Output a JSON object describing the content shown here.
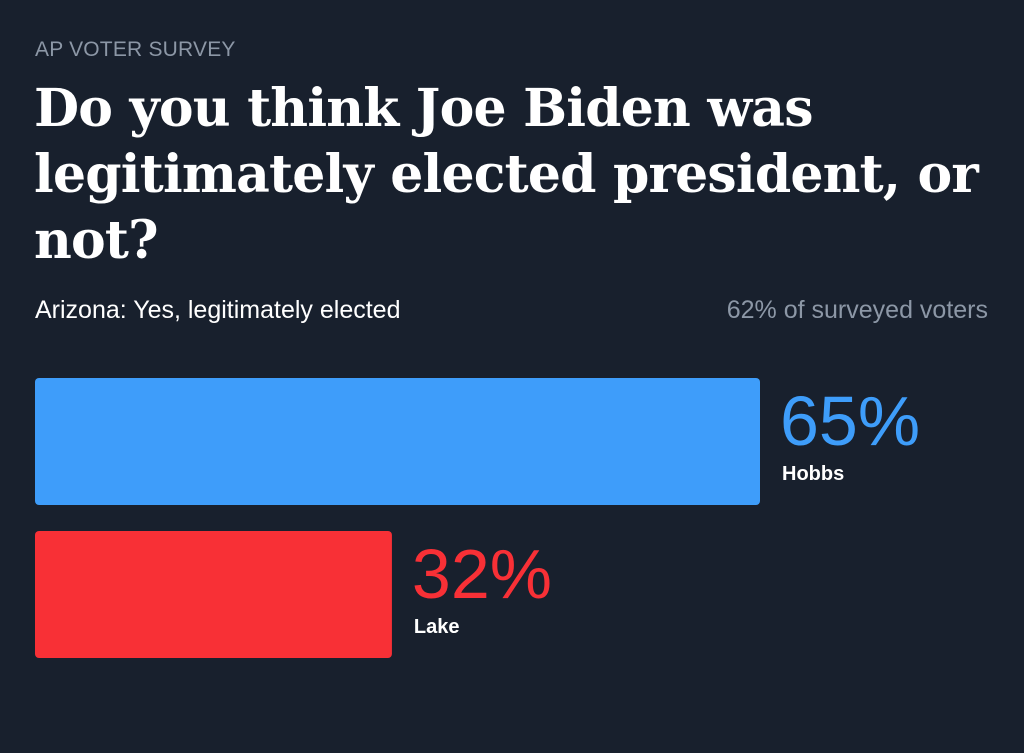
{
  "header": {
    "kicker": "AP VOTER SURVEY",
    "title": "Do you think Joe Biden was legitimately elected president, or not?",
    "subtitle": "Arizona: Yes, legitimately elected",
    "note": "62% of surveyed voters"
  },
  "chart_data": {
    "type": "bar",
    "orientation": "horizontal",
    "categories": [
      "Hobbs",
      "Lake"
    ],
    "values": [
      65,
      32
    ],
    "value_labels": [
      "65%",
      "32%"
    ],
    "colors": [
      "#3e9dfa",
      "#f83036"
    ],
    "xlim": [
      0,
      100
    ],
    "title": "Do you think Joe Biden was legitimately elected president, or not?",
    "xlabel": "",
    "ylabel": "",
    "grid": false
  }
}
